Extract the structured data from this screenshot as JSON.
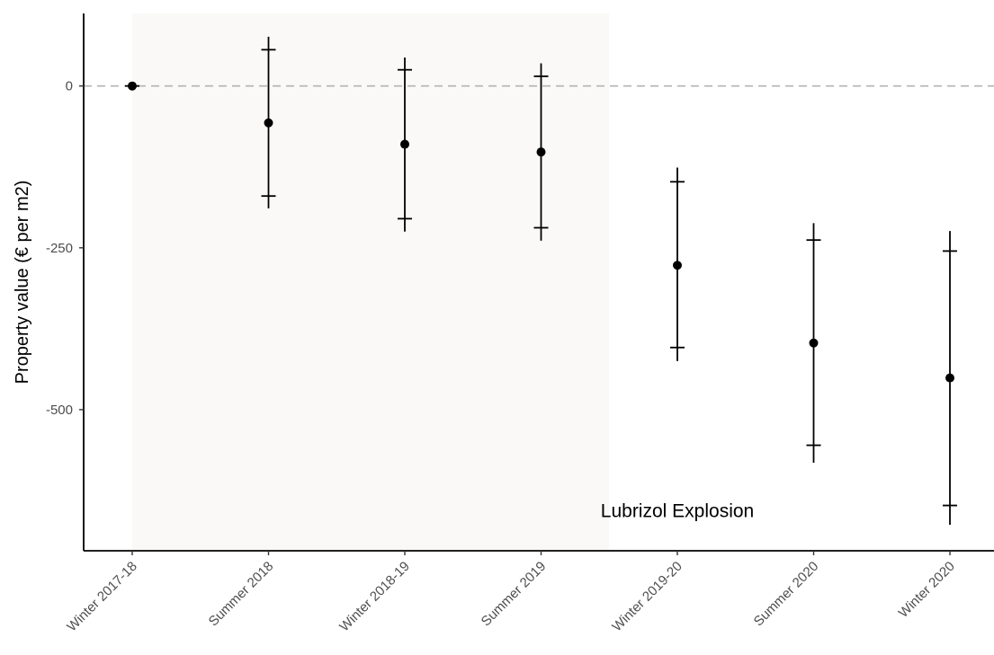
{
  "chart_data": {
    "type": "scatter",
    "subtype": "point-estimate-with-confidence-interval",
    "title": "",
    "xlabel": "",
    "ylabel": "Property value (€ per m2)",
    "categories": [
      "Winter 2017-18",
      "Summer 2018",
      "Winter 2018-19",
      "Summer 2019",
      "Winter 2019-20",
      "Summer 2020",
      "Winter 2020"
    ],
    "series": [
      {
        "estimate": [
          0,
          -57,
          -90,
          -102,
          -277,
          -397,
          -451
        ],
        "ci_inner": [
          [
            0,
            0
          ],
          [
            -170,
            56
          ],
          [
            -205,
            25
          ],
          [
            -219,
            15
          ],
          [
            -404,
            -148
          ],
          [
            -555,
            -238
          ],
          [
            -648,
            -255
          ]
        ],
        "ci_outer": [
          [
            0,
            0
          ],
          [
            -189,
            76
          ],
          [
            -225,
            44
          ],
          [
            -239,
            35
          ],
          [
            -425,
            -126
          ],
          [
            -582,
            -212
          ],
          [
            -678,
            -224
          ]
        ]
      }
    ],
    "yticks": [
      0,
      -250,
      -500
    ],
    "ytick_labels": [
      "0",
      "-250",
      "-500"
    ],
    "ylim": [
      -718,
      112
    ],
    "reference_line": {
      "y": 0,
      "style": "dashed",
      "color": "#b3b3b3"
    },
    "shaded_region": {
      "from_category": "Winter 2017-18",
      "to_category": "Summer 2019",
      "color": "#faf9f7"
    },
    "annotations": [
      {
        "text": "Lubrizol Explosion",
        "x_category": "Winter 2019-20",
        "y": -655
      }
    ],
    "grid": false,
    "legend": "none",
    "colors": {
      "points": "#000000",
      "axis": "#000000",
      "ticks": "#4d4d4d"
    }
  }
}
